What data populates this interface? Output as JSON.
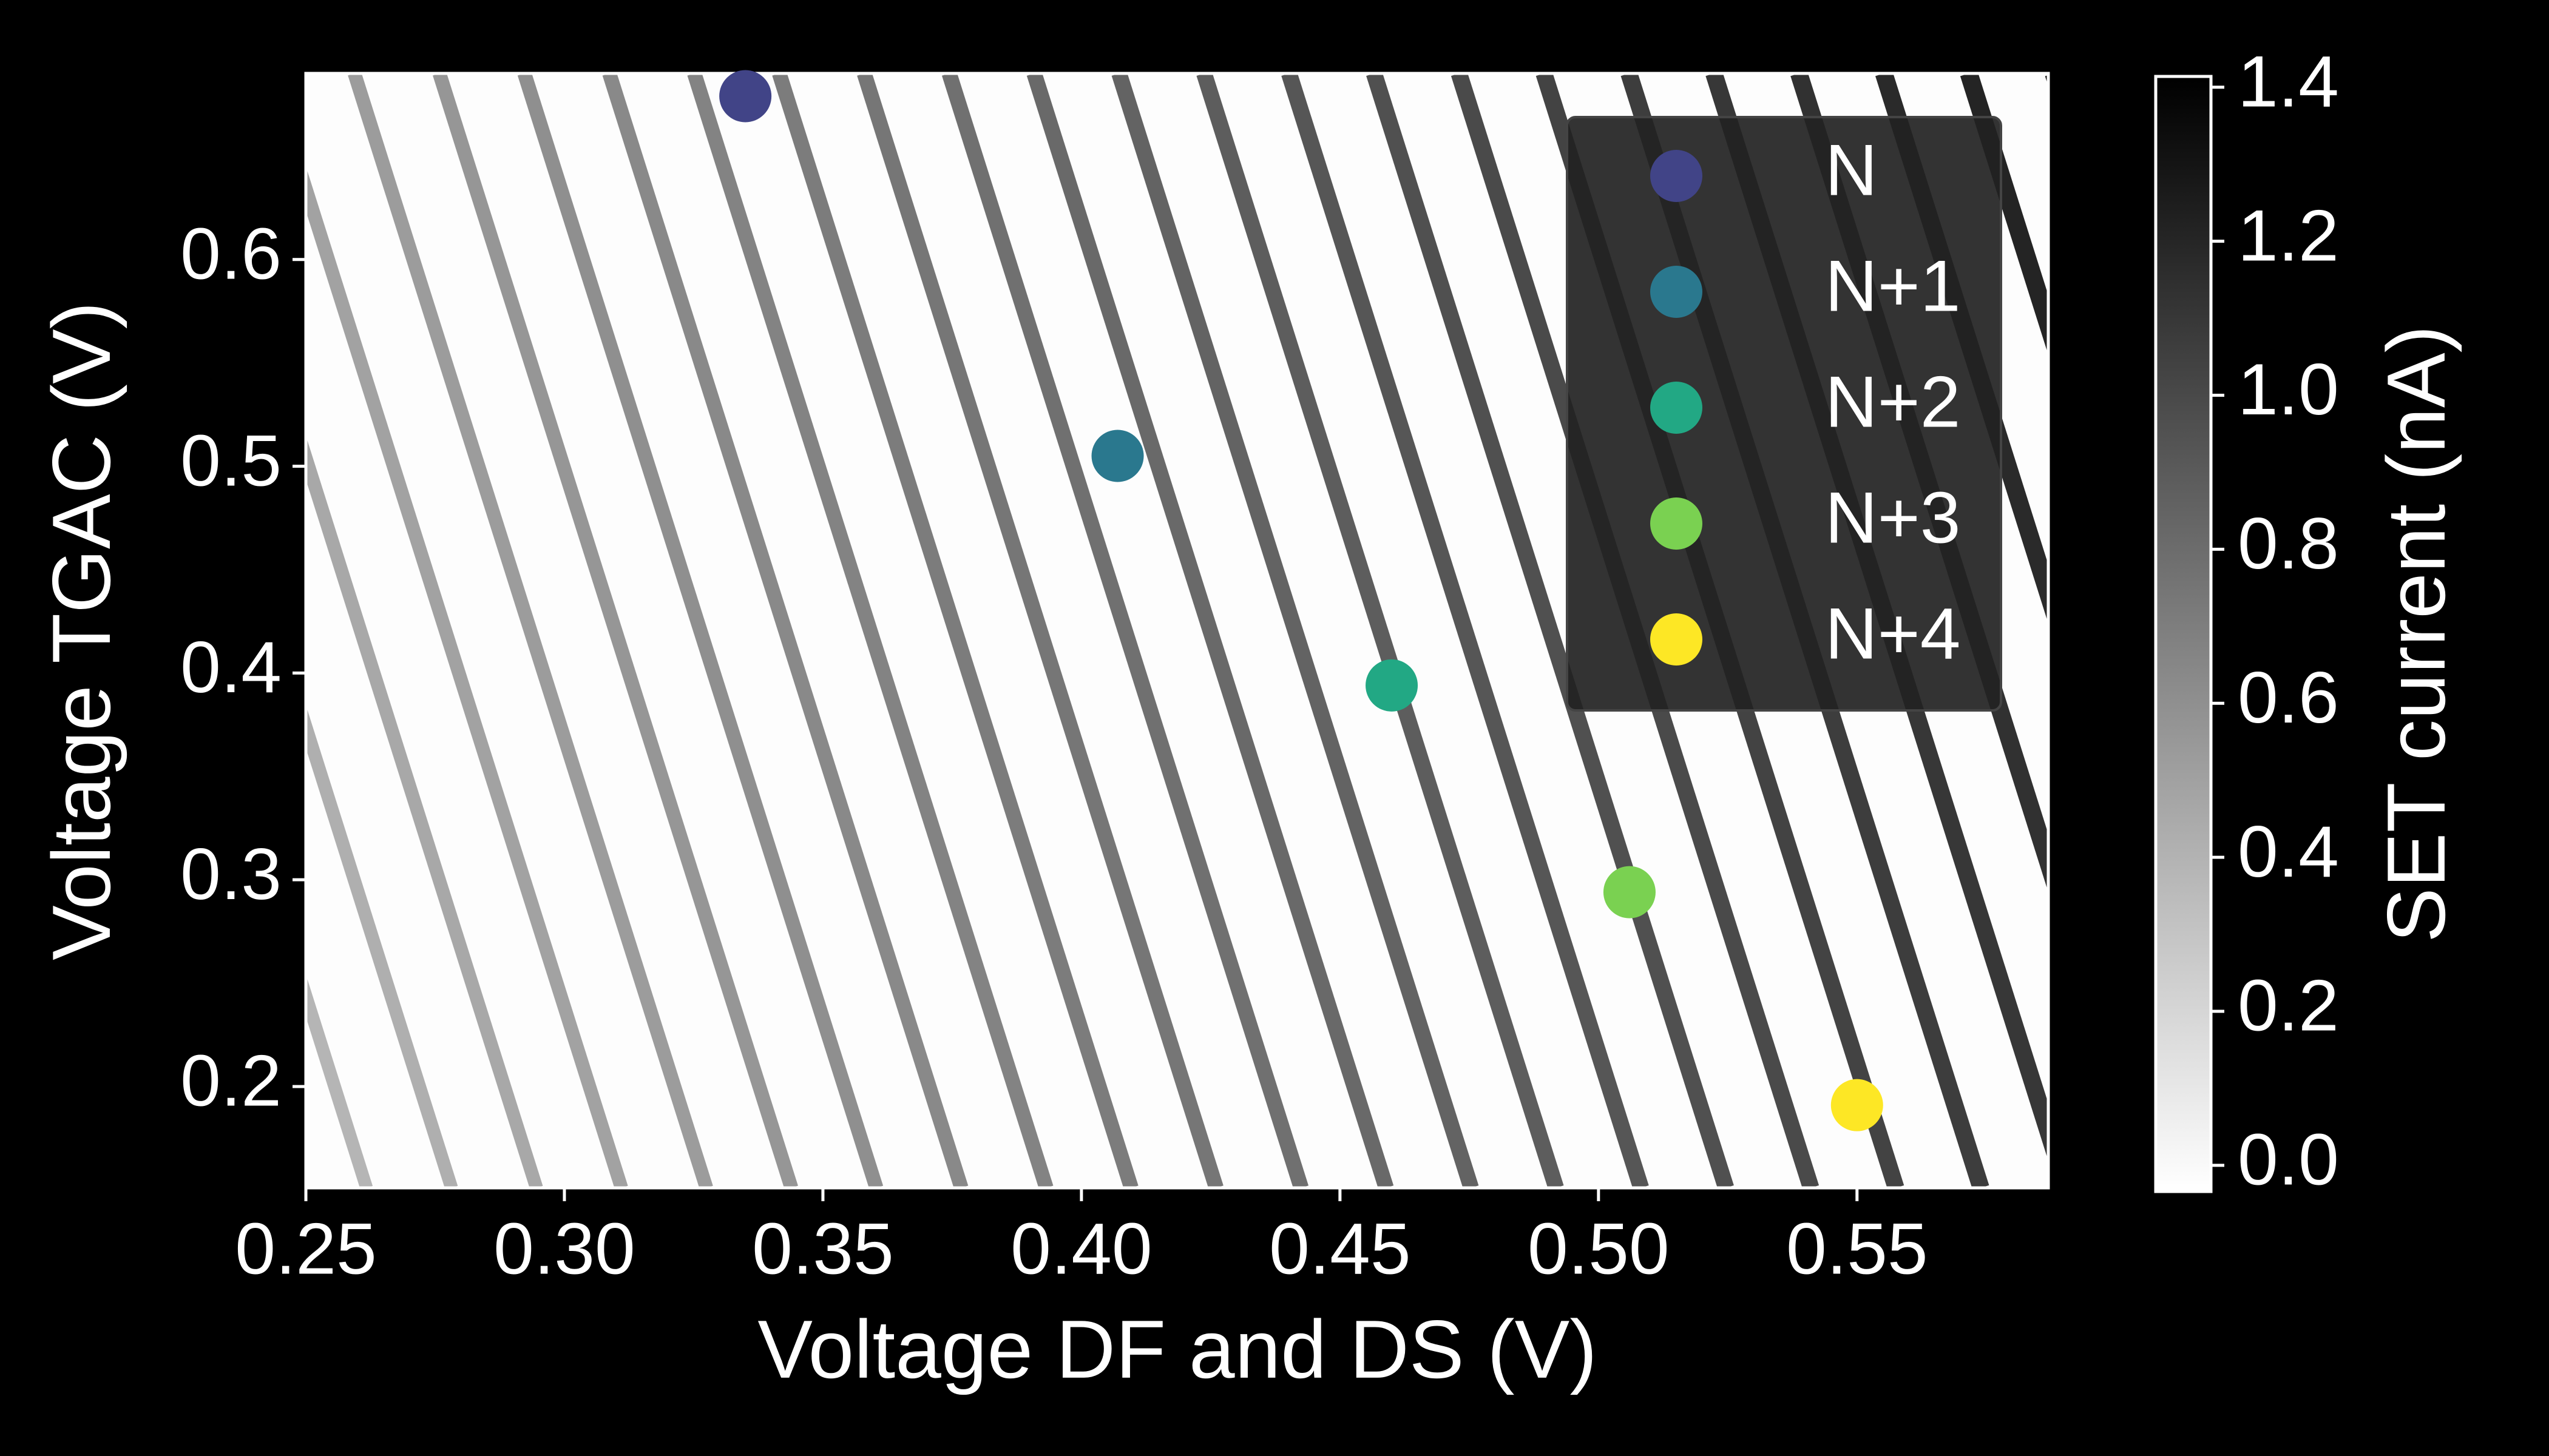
{
  "chart_data": {
    "type": "scatter",
    "xlabel": "Voltage DF and DS (V)",
    "ylabel": "Voltage TGAC (V)",
    "xlim": [
      0.25,
      0.587
    ],
    "ylim": [
      0.151,
      0.69
    ],
    "xticks": [
      0.25,
      {
        "value": 0.3,
        "label": "0.30"
      },
      0.35,
      {
        "value": 0.4,
        "label": "0.40"
      },
      0.45,
      {
        "value": 0.5,
        "label": "0.50"
      },
      0.55
    ],
    "yticks": [
      0.2,
      0.3,
      0.4,
      0.5,
      0.6
    ],
    "series": [
      {
        "name": "N",
        "color": "#414487",
        "x": [
          0.335
        ],
        "values": [
          0.679
        ]
      },
      {
        "name": "N+1",
        "color": "#2a788e",
        "x": [
          0.407
        ],
        "values": [
          0.505
        ]
      },
      {
        "name": "N+2",
        "color": "#22a884",
        "x": [
          0.46
        ],
        "values": [
          0.394
        ]
      },
      {
        "name": "N+3",
        "color": "#7ad151",
        "x": [
          0.506
        ],
        "values": [
          0.294
        ]
      },
      {
        "name": "N+4",
        "color": "#fde725",
        "x": [
          0.55
        ],
        "values": [
          0.191
        ]
      }
    ],
    "legend": "upper right",
    "colorbar": {
      "label": "SET current (nA)",
      "lim": [
        -0.034,
        1.414
      ],
      "ticks": [
        {
          "value": 0,
          "label": "0.0"
        },
        0.2,
        0.4,
        0.6,
        0.8,
        {
          "value": 1,
          "label": "1.0"
        },
        1.2,
        1.4
      ]
    }
  }
}
